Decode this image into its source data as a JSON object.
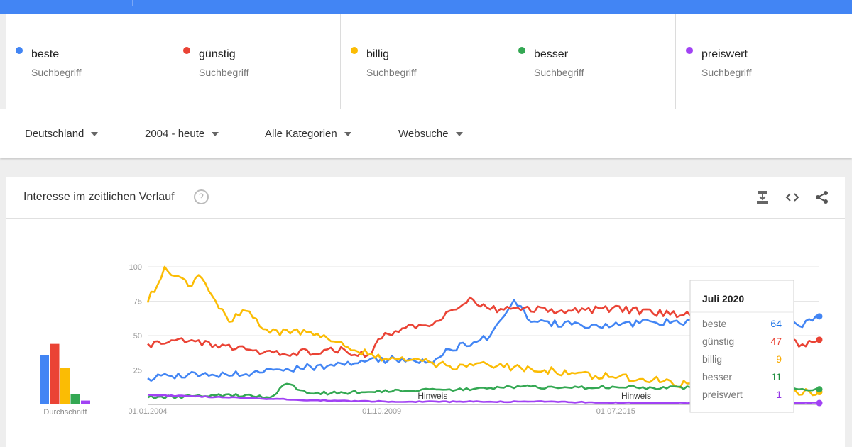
{
  "terms": [
    {
      "name": "beste",
      "sub": "Suchbegriff",
      "color": "#4285f4"
    },
    {
      "name": "günstig",
      "sub": "Suchbegriff",
      "color": "#ea4335"
    },
    {
      "name": "billig",
      "sub": "Suchbegriff",
      "color": "#fbbc04"
    },
    {
      "name": "besser",
      "sub": "Suchbegriff",
      "color": "#34a853"
    },
    {
      "name": "preiswert",
      "sub": "Suchbegriff",
      "color": "#a142f4"
    }
  ],
  "filters": {
    "region": "Deutschland",
    "time": "2004 - heute",
    "category": "Alle Kategorien",
    "search": "Websuche"
  },
  "card": {
    "title": "Interesse im zeitlichen Verlauf",
    "help_icon": "help-icon",
    "download_icon": "download-icon",
    "embed_icon": "embed-icon",
    "share_icon": "share-icon"
  },
  "tooltip": {
    "title": "Juli 2020",
    "rows": [
      {
        "label": "beste",
        "value": "64",
        "color": "#1a73e8"
      },
      {
        "label": "günstig",
        "value": "47",
        "color": "#ea4335"
      },
      {
        "label": "billig",
        "value": "9",
        "color": "#f9ab00"
      },
      {
        "label": "besser",
        "value": "11",
        "color": "#1e8e3e"
      },
      {
        "label": "preiswert",
        "value": "1",
        "color": "#9334e6"
      }
    ]
  },
  "chart_data": {
    "type": "line",
    "yticks": [
      25,
      50,
      75,
      100
    ],
    "ylim": [
      0,
      100
    ],
    "xlabels": [
      "01.01.2004",
      "01.10.2009",
      "01.07.2015"
    ],
    "xlim": [
      "2004-01",
      "2020-07"
    ],
    "notes": [
      "Hinweis",
      "Hinweis"
    ],
    "note_dates": [
      "2011-01",
      "2016-01"
    ],
    "grid": true,
    "series": [
      {
        "name": "beste",
        "color": "#4285f4",
        "points": [
          [
            "2004-01",
            19
          ],
          [
            "2005-01",
            22
          ],
          [
            "2006-06",
            22
          ],
          [
            "2007-06",
            26
          ],
          [
            "2008-06",
            28
          ],
          [
            "2009-06",
            32
          ],
          [
            "2010-06",
            33
          ],
          [
            "2011-01",
            30
          ],
          [
            "2011-06",
            40
          ],
          [
            "2012-01",
            45
          ],
          [
            "2012-06",
            50
          ],
          [
            "2013-01",
            76
          ],
          [
            "2013-06",
            60
          ],
          [
            "2014-06",
            58
          ],
          [
            "2015-06",
            57
          ],
          [
            "2016-06",
            60
          ],
          [
            "2017-06",
            60
          ],
          [
            "2018-06",
            62
          ],
          [
            "2019-01",
            62
          ],
          [
            "2019-06",
            70
          ],
          [
            "2020-01",
            57
          ],
          [
            "2020-04",
            62
          ],
          [
            "2020-07",
            64
          ]
        ]
      },
      {
        "name": "günstig",
        "color": "#ea4335",
        "points": [
          [
            "2004-01",
            44
          ],
          [
            "2005-01",
            46
          ],
          [
            "2006-06",
            40
          ],
          [
            "2007-06",
            36
          ],
          [
            "2008-06",
            40
          ],
          [
            "2009-06",
            36
          ],
          [
            "2009-10",
            48
          ],
          [
            "2010-06",
            58
          ],
          [
            "2011-01",
            58
          ],
          [
            "2011-06",
            68
          ],
          [
            "2012-01",
            76
          ],
          [
            "2012-06",
            69
          ],
          [
            "2013-01",
            70
          ],
          [
            "2014-06",
            68
          ],
          [
            "2015-06",
            70
          ],
          [
            "2016-06",
            66
          ],
          [
            "2017-06",
            66
          ],
          [
            "2018-06",
            66
          ],
          [
            "2019-06",
            60
          ],
          [
            "2020-01",
            42
          ],
          [
            "2020-07",
            47
          ]
        ]
      },
      {
        "name": "billig",
        "color": "#fbbc04",
        "points": [
          [
            "2004-01",
            74
          ],
          [
            "2004-06",
            100
          ],
          [
            "2005-01",
            86
          ],
          [
            "2005-04",
            94
          ],
          [
            "2006-01",
            60
          ],
          [
            "2006-06",
            68
          ],
          [
            "2007-01",
            52
          ],
          [
            "2007-06",
            54
          ],
          [
            "2008-06",
            48
          ],
          [
            "2009-06",
            36
          ],
          [
            "2010-06",
            32
          ],
          [
            "2011-06",
            28
          ],
          [
            "2012-06",
            28
          ],
          [
            "2013-06",
            26
          ],
          [
            "2014-06",
            23
          ],
          [
            "2015-06",
            20
          ],
          [
            "2016-06",
            18
          ],
          [
            "2017-06",
            14
          ],
          [
            "2018-06",
            12
          ],
          [
            "2019-06",
            10
          ],
          [
            "2020-07",
            9
          ]
        ]
      },
      {
        "name": "besser",
        "color": "#34a853",
        "points": [
          [
            "2004-01",
            5
          ],
          [
            "2005-06",
            6
          ],
          [
            "2006-06",
            7
          ],
          [
            "2007-01",
            5
          ],
          [
            "2007-06",
            15
          ],
          [
            "2008-01",
            8
          ],
          [
            "2009-06",
            9
          ],
          [
            "2010-06",
            10
          ],
          [
            "2011-06",
            11
          ],
          [
            "2012-06",
            12
          ],
          [
            "2013-06",
            13
          ],
          [
            "2014-06",
            12
          ],
          [
            "2015-06",
            13
          ],
          [
            "2016-06",
            12
          ],
          [
            "2017-06",
            12
          ],
          [
            "2018-06",
            12
          ],
          [
            "2019-06",
            11
          ],
          [
            "2020-07",
            11
          ]
        ]
      },
      {
        "name": "preiswert",
        "color": "#a142f4",
        "points": [
          [
            "2004-01",
            7
          ],
          [
            "2005-01",
            6
          ],
          [
            "2006-01",
            5
          ],
          [
            "2007-01",
            4
          ],
          [
            "2008-01",
            3
          ],
          [
            "2010-01",
            2
          ],
          [
            "2012-01",
            2
          ],
          [
            "2014-01",
            2
          ],
          [
            "2016-01",
            1
          ],
          [
            "2018-01",
            1
          ],
          [
            "2020-07",
            1
          ]
        ]
      }
    ],
    "averages_label": "Durchschnitt",
    "averages": [
      {
        "name": "beste",
        "value": 46,
        "color": "#4285f4"
      },
      {
        "name": "günstig",
        "value": 57,
        "color": "#ea4335"
      },
      {
        "name": "billig",
        "value": 34,
        "color": "#fbbc04"
      },
      {
        "name": "besser",
        "value": 9,
        "color": "#34a853"
      },
      {
        "name": "preiswert",
        "value": 3,
        "color": "#a142f4"
      }
    ]
  }
}
